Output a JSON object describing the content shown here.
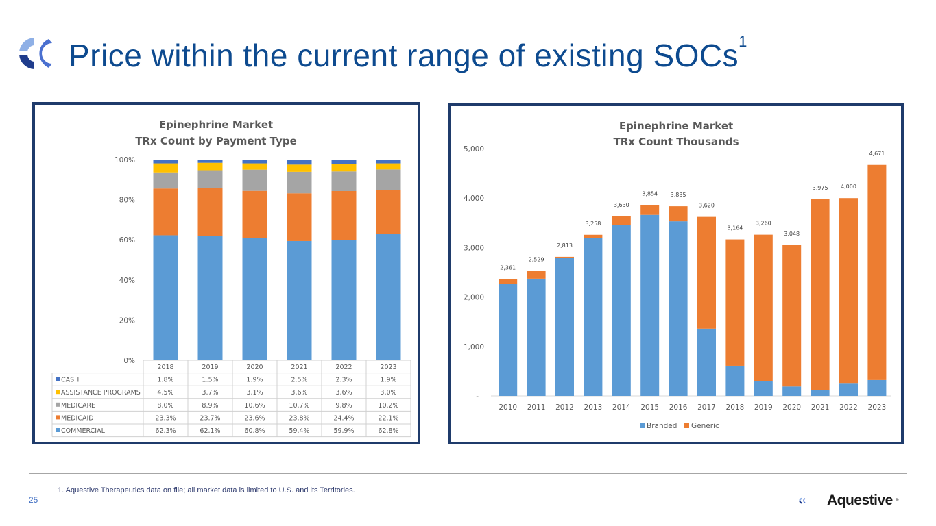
{
  "page": {
    "title": "Price within the current range of existing SOCs",
    "title_superscript": "1",
    "footnote": "1. Aquestive Therapeutics data on file; all market data is limited to U.S. and its Territories.",
    "page_number": "25",
    "brand_name": "Aquestive",
    "brand_registered": "®"
  },
  "colors": {
    "title": "#0d4a8f",
    "commercial": "#5b9bd5",
    "medicaid": "#ed7d31",
    "medicare": "#a5a5a5",
    "assistance": "#ffc000",
    "cash": "#4472c4",
    "branded": "#5b9bd5",
    "generic": "#ed7d31",
    "panel_border": "#1f3b6b"
  },
  "chart_data": [
    {
      "type": "bar",
      "stacked": true,
      "percent": true,
      "title": "Epinephrine Market",
      "subtitle": "TRx Count by Payment Type",
      "xlabel": "",
      "ylabel": "",
      "ylim": [
        0,
        100
      ],
      "yticks": [
        "0%",
        "20%",
        "40%",
        "60%",
        "80%",
        "100%"
      ],
      "grid": false,
      "legend": "data-table-below",
      "categories": [
        "2018",
        "2019",
        "2020",
        "2021",
        "2022",
        "2023"
      ],
      "series": [
        {
          "name": "COMMERCIAL",
          "values": [
            62.3,
            62.1,
            60.8,
            59.4,
            59.9,
            62.8
          ],
          "labels": [
            "62.3%",
            "62.1%",
            "60.8%",
            "59.4%",
            "59.9%",
            "62.8%"
          ]
        },
        {
          "name": "MEDICAID",
          "values": [
            23.3,
            23.7,
            23.6,
            23.8,
            24.4,
            22.1
          ],
          "labels": [
            "23.3%",
            "23.7%",
            "23.6%",
            "23.8%",
            "24.4%",
            "22.1%"
          ]
        },
        {
          "name": "MEDICARE",
          "values": [
            8.0,
            8.9,
            10.6,
            10.7,
            9.8,
            10.2
          ],
          "labels": [
            "8.0%",
            "8.9%",
            "10.6%",
            "10.7%",
            "9.8%",
            "10.2%"
          ]
        },
        {
          "name": "ASSISTANCE PROGRAMS",
          "values": [
            4.5,
            3.7,
            3.1,
            3.6,
            3.6,
            3.0
          ],
          "labels": [
            "4.5%",
            "3.7%",
            "3.1%",
            "3.6%",
            "3.6%",
            "3.0%"
          ]
        },
        {
          "name": "CASH",
          "values": [
            1.8,
            1.5,
            1.9,
            2.5,
            2.3,
            1.9
          ],
          "labels": [
            "1.8%",
            "1.5%",
            "1.9%",
            "2.5%",
            "2.3%",
            "1.9%"
          ]
        }
      ],
      "table_row_order": [
        "CASH",
        "ASSISTANCE PROGRAMS",
        "MEDICARE",
        "MEDICAID",
        "COMMERCIAL"
      ]
    },
    {
      "type": "bar",
      "stacked": true,
      "title": "Epinephrine Market",
      "subtitle": "TRx Count Thousands",
      "xlabel": "",
      "ylabel": "",
      "ylim": [
        0,
        5000
      ],
      "yticks": [
        "-",
        "1,000",
        "2,000",
        "3,000",
        "4,000",
        "5,000"
      ],
      "grid": false,
      "legend": "bottom",
      "categories": [
        "2010",
        "2011",
        "2012",
        "2013",
        "2014",
        "2015",
        "2016",
        "2017",
        "2018",
        "2019",
        "2020",
        "2021",
        "2022",
        "2023"
      ],
      "totals": [
        2361,
        2529,
        2813,
        3258,
        3630,
        3854,
        3835,
        3620,
        3164,
        3260,
        3048,
        3975,
        4000,
        4671
      ],
      "total_labels": [
        "2,361",
        "2,529",
        "2,813",
        "3,258",
        "3,630",
        "3,854",
        "3,835",
        "3,620",
        "3,164",
        "3,260",
        "3,048",
        "3,975",
        "4,000",
        "4,671"
      ],
      "series": [
        {
          "name": "Branded",
          "values": [
            2270,
            2370,
            2795,
            3190,
            3460,
            3660,
            3530,
            1360,
            610,
            300,
            190,
            120,
            260,
            320
          ]
        },
        {
          "name": "Generic",
          "values": [
            91,
            159,
            18,
            68,
            170,
            194,
            305,
            2260,
            2554,
            2960,
            2858,
            3855,
            3740,
            4351
          ]
        }
      ]
    }
  ]
}
